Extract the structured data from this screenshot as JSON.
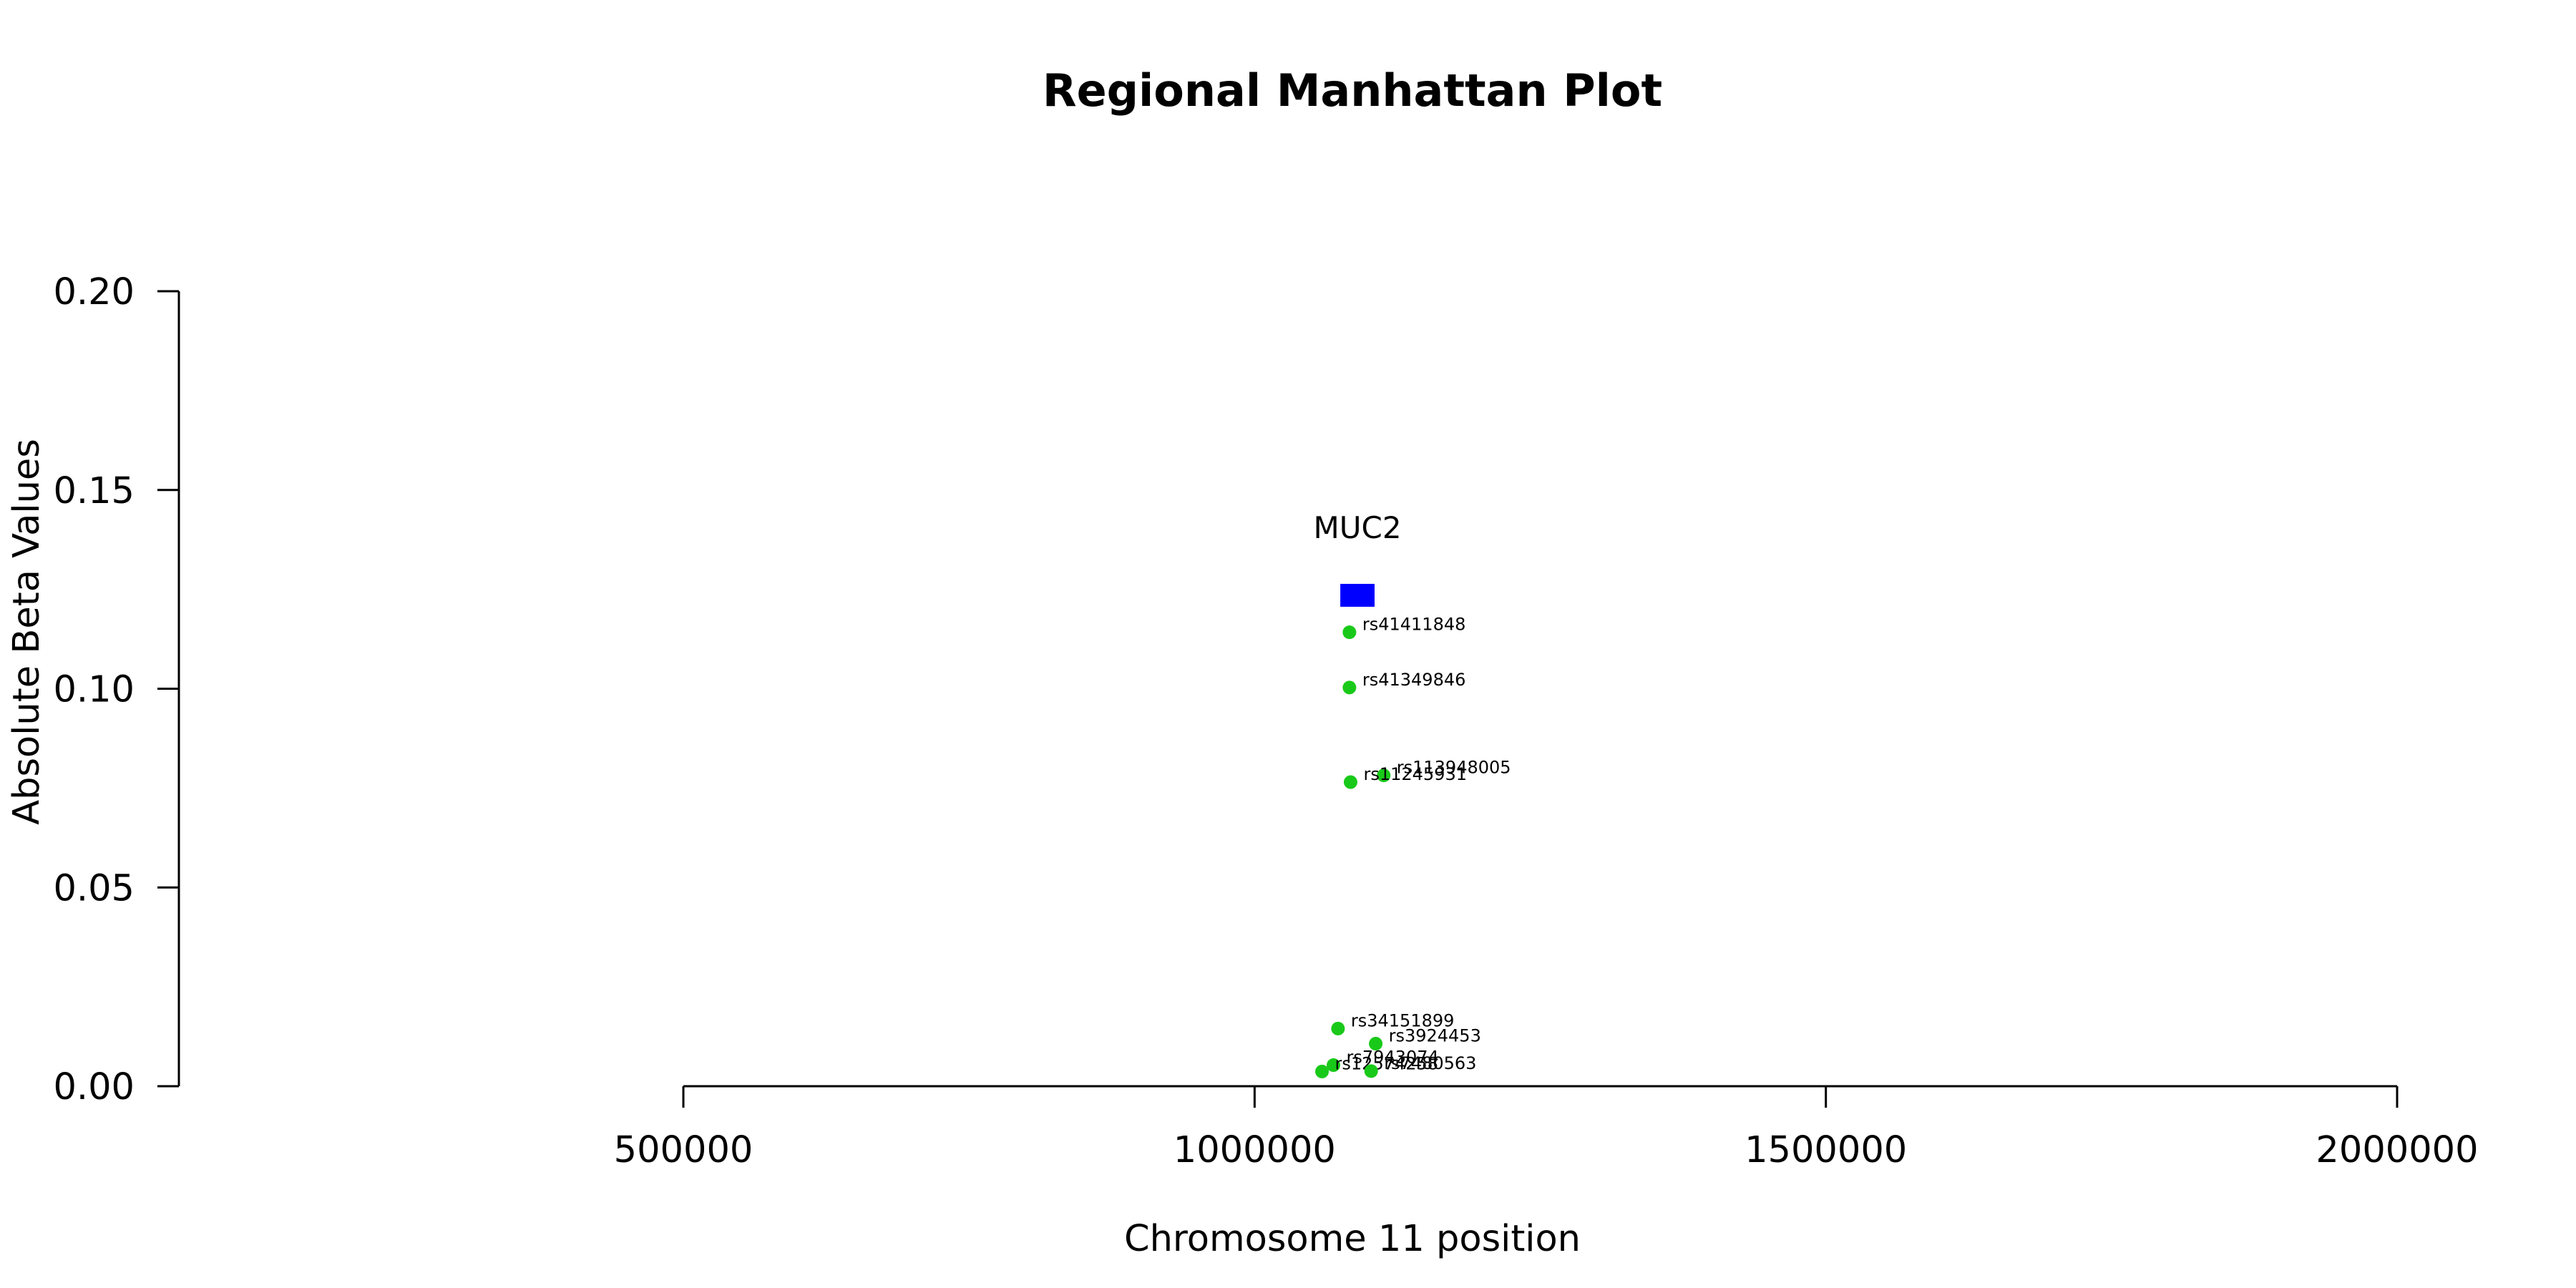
{
  "chart_data": {
    "type": "scatter",
    "title": "Regional Manhattan Plot",
    "xlabel": "Chromosome 11 position",
    "ylabel": "Absolute Beta Values",
    "xlim": [
      500000,
      2000000
    ],
    "ylim": [
      0.0,
      0.2
    ],
    "x_ticks": [
      500000,
      1000000,
      1500000,
      2000000
    ],
    "x_tick_labels": [
      "500000",
      "1000000",
      "1500000",
      "2000000"
    ],
    "y_ticks": [
      0.0,
      0.05,
      0.1,
      0.15,
      0.2
    ],
    "y_tick_labels": [
      "0.00",
      "0.05",
      "0.10",
      "0.15",
      "0.20"
    ],
    "grid": false,
    "point_color": "#19c919",
    "gene_color": "#0000ff",
    "genes": [
      {
        "name": "MUC2",
        "start": 1075000,
        "end": 1105000,
        "y": 0.1235
      }
    ],
    "points": [
      {
        "label": "rs41411848",
        "x": 1083000,
        "y": 0.1142
      },
      {
        "label": "rs41349846",
        "x": 1083000,
        "y": 0.1003
      },
      {
        "label": "rs113948005",
        "x": 1113000,
        "y": 0.0782
      },
      {
        "label": "rs11245931",
        "x": 1084000,
        "y": 0.0765
      },
      {
        "label": "rs34151899",
        "x": 1073000,
        "y": 0.0145
      },
      {
        "label": "rs3924453",
        "x": 1106000,
        "y": 0.0107
      },
      {
        "label": "rs7943074",
        "x": 1069000,
        "y": 0.0053
      },
      {
        "label": "rs12574258",
        "x": 1059000,
        "y": 0.0037
      },
      {
        "label": "rs7480563",
        "x": 1102000,
        "y": 0.0038
      }
    ]
  }
}
